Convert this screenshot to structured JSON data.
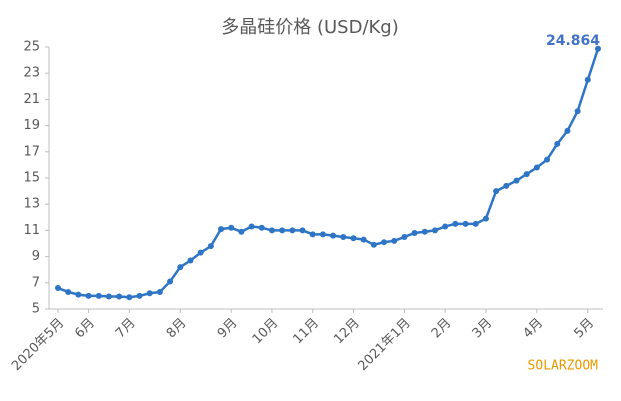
{
  "chart_data": {
    "type": "line",
    "title": "多晶硅价格 (USD/Kg)",
    "categories": [
      "2020年5月",
      null,
      null,
      "6月",
      null,
      null,
      null,
      "7月",
      null,
      null,
      null,
      null,
      "8月",
      null,
      null,
      null,
      null,
      "9月",
      null,
      null,
      null,
      "10月",
      null,
      null,
      null,
      "11月",
      null,
      null,
      null,
      "12月",
      null,
      null,
      null,
      null,
      "2021年1月",
      null,
      null,
      null,
      "2月",
      null,
      null,
      null,
      "3月",
      null,
      null,
      null,
      null,
      "4月",
      null,
      null,
      null,
      null,
      "5月",
      null
    ],
    "series": [
      {
        "name": "多晶硅价格",
        "color": "#2e75c6",
        "values": [
          6.6,
          6.3,
          6.1,
          6.0,
          6.0,
          5.95,
          5.95,
          5.9,
          6.0,
          6.2,
          6.3,
          7.1,
          8.2,
          8.7,
          9.3,
          9.8,
          11.1,
          11.2,
          10.9,
          11.3,
          11.2,
          11.0,
          11.0,
          11.0,
          11.0,
          10.7,
          10.7,
          10.6,
          10.5,
          10.4,
          10.3,
          9.9,
          10.1,
          10.2,
          10.5,
          10.8,
          10.9,
          11.0,
          11.3,
          11.5,
          11.5,
          11.5,
          11.9,
          14.0,
          14.4,
          14.8,
          15.3,
          15.8,
          16.4,
          17.6,
          18.6,
          20.1,
          22.5,
          24.864
        ]
      }
    ],
    "ylim": [
      5,
      25
    ],
    "yticks": [
      5,
      7,
      9,
      11,
      13,
      15,
      17,
      19,
      21,
      23,
      25
    ],
    "label_color": "#4472c4",
    "watermark": "SOLARZOOM"
  }
}
